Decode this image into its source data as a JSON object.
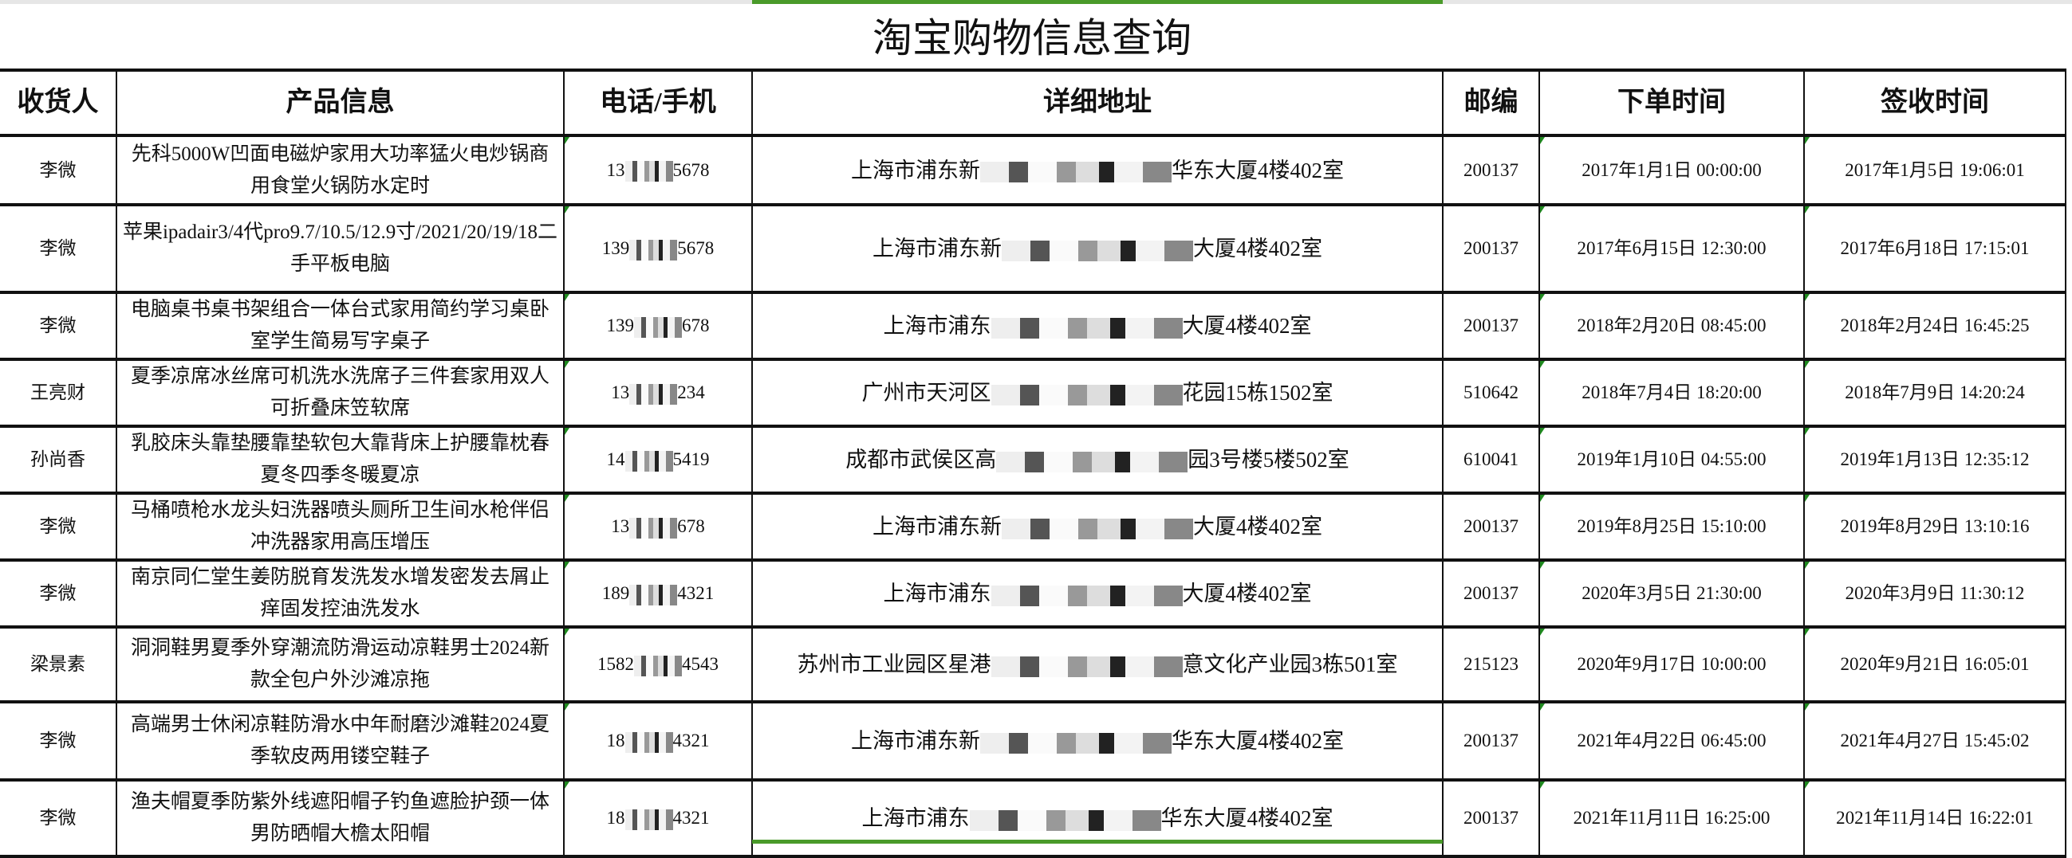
{
  "title": "淘宝购物信息查询",
  "accent_color": "#4a9a2a",
  "headers": [
    "收货人",
    "产品信息",
    "电话/手机",
    "详细地址",
    "邮编",
    "下单时间",
    "签收时间"
  ],
  "rows": [
    {
      "name": "李微",
      "product": "先科5000W凹面电磁炉家用大功率猛火电炒锅商用食堂火锅防水定时",
      "phone_start": "13",
      "phone_end": "5678",
      "addr_start": "上海市浦东新",
      "addr_end": "华东大厦4楼402室",
      "zip": "200137",
      "order_time": "2017年1月1日 00:00:00",
      "sign_time": "2017年1月5日 19:06:01"
    },
    {
      "name": "李微",
      "product": "苹果ipadair3/4代pro9.7/10.5/12.9寸/2021/20/19/18二手平板电脑",
      "phone_start": "139",
      "phone_end": "5678",
      "addr_start": "上海市浦东新",
      "addr_end": "大厦4楼402室",
      "zip": "200137",
      "order_time": "2017年6月15日 12:30:00",
      "sign_time": "2017年6月18日 17:15:01"
    },
    {
      "name": "李微",
      "product": "电脑桌书桌书架组合一体台式家用简约学习桌卧室学生简易写字桌子",
      "phone_start": "139",
      "phone_end": "678",
      "addr_start": "上海市浦东",
      "addr_end": "大厦4楼402室",
      "zip": "200137",
      "order_time": "2018年2月20日 08:45:00",
      "sign_time": "2018年2月24日 16:45:25"
    },
    {
      "name": "王亮财",
      "product": "夏季凉席冰丝席可机洗水洗席子三件套家用双人可折叠床笠软席",
      "phone_start": "13",
      "phone_end": "234",
      "addr_start": "广州市天河区",
      "addr_end": "花园15栋1502室",
      "zip": "510642",
      "order_time": "2018年7月4日 18:20:00",
      "sign_time": "2018年7月9日 14:20:24"
    },
    {
      "name": "孙尚香",
      "product": "乳胶床头靠垫腰靠垫软包大靠背床上护腰靠枕春夏冬四季冬暖夏凉",
      "phone_start": "14",
      "phone_end": "5419",
      "addr_start": "成都市武侯区高",
      "addr_end": "园3号楼5楼502室",
      "zip": "610041",
      "order_time": "2019年1月10日 04:55:00",
      "sign_time": "2019年1月13日 12:35:12"
    },
    {
      "name": "李微",
      "product": "马桶喷枪水龙头妇洗器喷头厕所卫生间水枪伴侣冲洗器家用高压增压",
      "phone_start": "13",
      "phone_end": "678",
      "addr_start": "上海市浦东新",
      "addr_end": "大厦4楼402室",
      "zip": "200137",
      "order_time": "2019年8月25日 15:10:00",
      "sign_time": "2019年8月29日 13:10:16"
    },
    {
      "name": "李微",
      "product": "南京同仁堂生姜防脱育发洗发水增发密发去屑止痒固发控油洗发水",
      "phone_start": "189",
      "phone_end": "4321",
      "addr_start": "上海市浦东",
      "addr_end": "大厦4楼402室",
      "zip": "200137",
      "order_time": "2020年3月5日 21:30:00",
      "sign_time": "2020年3月9日 11:30:12"
    },
    {
      "name": "梁景素",
      "product": "洞洞鞋男夏季外穿潮流防滑运动凉鞋男士2024新款全包户外沙滩凉拖",
      "phone_start": "1582",
      "phone_end": "4543",
      "addr_start": "苏州市工业园区星港",
      "addr_end": "意文化产业园3栋501室",
      "zip": "215123",
      "order_time": "2020年9月17日 10:00:00",
      "sign_time": "2020年9月21日 16:05:01"
    },
    {
      "name": "李微",
      "product": "高端男士休闲凉鞋防滑水中年耐磨沙滩鞋2024夏季软皮两用镂空鞋子",
      "phone_start": "18",
      "phone_end": "4321",
      "addr_start": "上海市浦东新",
      "addr_end": "华东大厦4楼402室",
      "zip": "200137",
      "order_time": "2021年4月22日 06:45:00",
      "sign_time": "2021年4月27日 15:45:02"
    },
    {
      "name": "李微",
      "product": "渔夫帽夏季防紫外线遮阳帽子钓鱼遮脸护颈一体男防晒帽大檐太阳帽",
      "phone_start": "18",
      "phone_end": "4321",
      "addr_start": "上海市浦东",
      "addr_end": "华东大厦4楼402室",
      "zip": "200137",
      "order_time": "2021年11月11日 16:25:00",
      "sign_time": "2021年11月14日 16:22:01"
    }
  ]
}
